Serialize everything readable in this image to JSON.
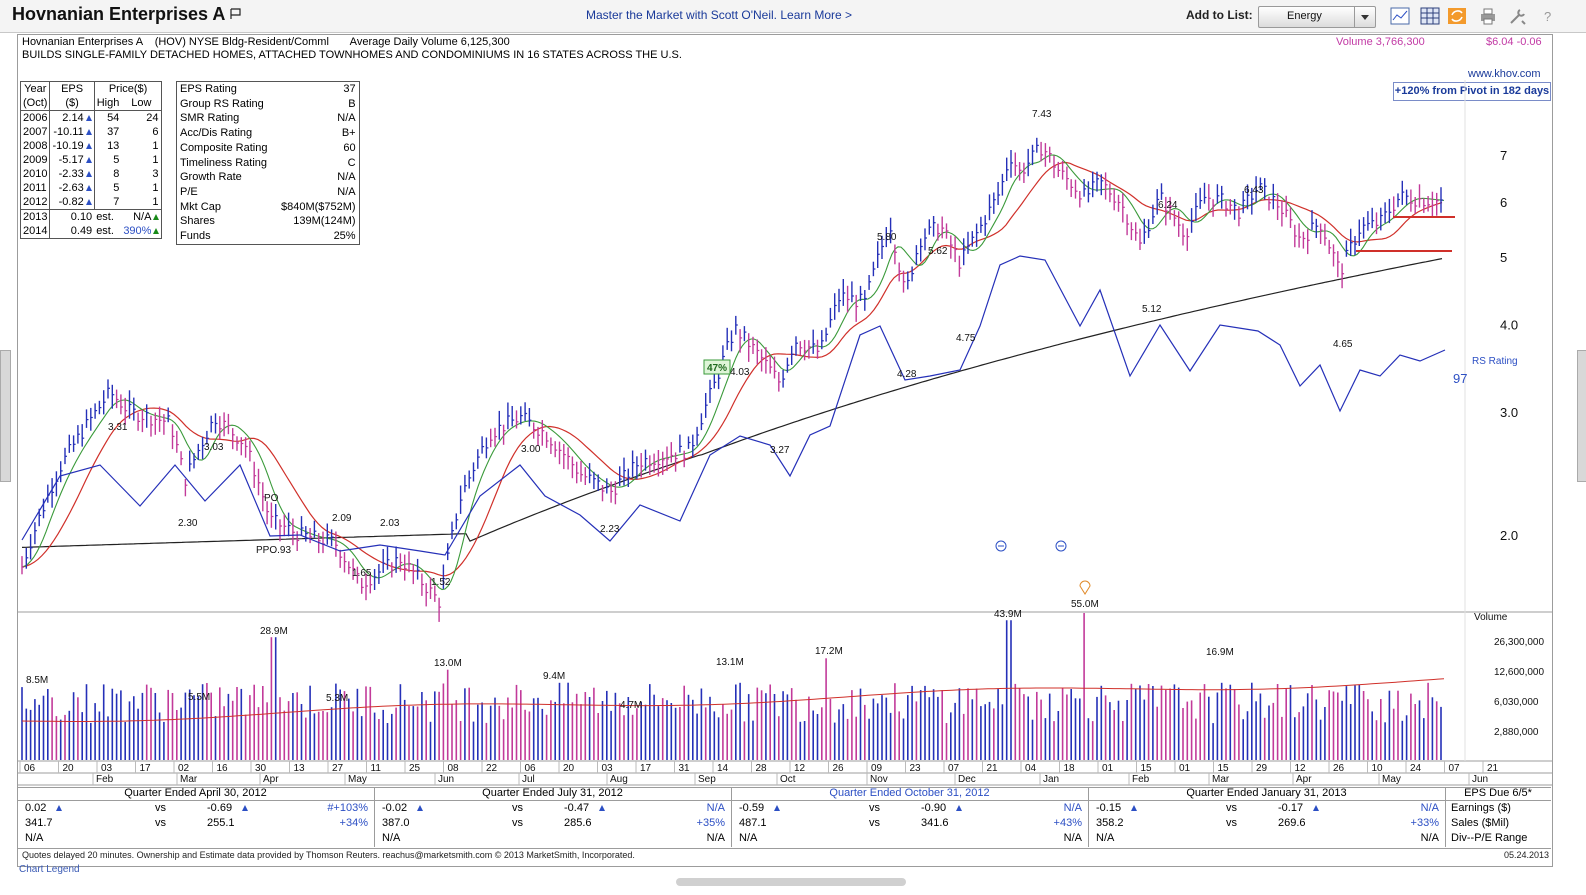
{
  "header": {
    "title": "Hovnanian Enterprises A",
    "promo": "Master the Market with Scott O'Neil. Learn More >",
    "add_to_list_label": "Add to List:",
    "list_value": "Energy",
    "icons": [
      "line-chart-icon",
      "grid-icon",
      "refresh-icon",
      "print-icon",
      "tools-icon",
      "help-icon"
    ]
  },
  "summary": {
    "line1": "Hovnanian Enterprises A    (HOV) NYSE Bldg-Resident/Comml       Average Daily Volume 6,125,300",
    "line2": "BUILDS SINGLE-FAMILY DETACHED HOMES, ATTACHED TOWNHOMES AND CONDOMINIUMS IN 16 STATES ACROSS THE U.S.",
    "volume": "Volume 3,766,300",
    "price": "$6.04 -0.06",
    "website": "www.khov.com",
    "pivot": "+120% from Pivot in 182 days"
  },
  "eps_table": {
    "headers": {
      "year": "Year",
      "year_sub": "(Oct)",
      "eps": "EPS",
      "eps_sub": "($)",
      "price": "Price($)",
      "high": "High",
      "low": "Low"
    },
    "rows": [
      {
        "year": "2006",
        "eps": "2.14",
        "high": "54",
        "low": "24"
      },
      {
        "year": "2007",
        "eps": "-10.11",
        "high": "37",
        "low": "6"
      },
      {
        "year": "2008",
        "eps": "-10.19",
        "high": "13",
        "low": "1"
      },
      {
        "year": "2009",
        "eps": "-5.17",
        "high": "5",
        "low": "1"
      },
      {
        "year": "2010",
        "eps": "-2.33",
        "high": "8",
        "low": "3"
      },
      {
        "year": "2011",
        "eps": "-2.63",
        "high": "5",
        "low": "1"
      },
      {
        "year": "2012",
        "eps": "-0.82",
        "high": "7",
        "low": "1"
      }
    ],
    "est_rows": [
      {
        "year": "2013",
        "eps": "0.10",
        "est": "est.",
        "pct": "N/A"
      },
      {
        "year": "2014",
        "eps": "0.49",
        "est": "est.",
        "pct": "390%"
      }
    ]
  },
  "ratings": [
    {
      "label": "EPS Rating",
      "value": "37"
    },
    {
      "label": "Group RS Rating",
      "value": "B"
    },
    {
      "label": "SMR Rating",
      "value": "N/A"
    },
    {
      "label": "Acc/Dis Rating",
      "value": "B+"
    },
    {
      "label": "Composite Rating",
      "value": "60"
    },
    {
      "label": "Timeliness Rating",
      "value": "C"
    },
    {
      "label": "Growth Rate",
      "value": "N/A"
    },
    {
      "label": "P/E",
      "value": "N/A"
    },
    {
      "label": "Mkt Cap",
      "value": "$840M($752M)"
    },
    {
      "label": "Shares",
      "value": "139M(124M)"
    },
    {
      "label": "Funds",
      "value": "25%"
    }
  ],
  "chart_data": {
    "type": "line",
    "price_axis_ticks": [
      "7",
      "6",
      "5",
      "4.0",
      "3.0",
      "2.0"
    ],
    "price_axis_values": [
      7,
      6,
      5,
      4,
      3,
      2
    ],
    "volume_axis_label": "Volume",
    "volume_axis_ticks": [
      "26,300,000",
      "12,600,000",
      "6,030,000",
      "2,880,000"
    ],
    "volume_axis_values": [
      26300000,
      12600000,
      6030000,
      2880000
    ],
    "rs_label": "RS Rating",
    "rs_value": "97",
    "rs_badge": "47%",
    "price_annotations": [
      {
        "text": "3.31",
        "price": 3.31
      },
      {
        "text": "2.30",
        "price": 2.3
      },
      {
        "text": "3.03",
        "price": 3.03
      },
      {
        "text": "PO",
        "price": 2.55
      },
      {
        "text": "PPO.93",
        "price": 1.93
      },
      {
        "text": "2.09",
        "price": 2.09
      },
      {
        "text": "1.65",
        "price": 1.65
      },
      {
        "text": "2.03",
        "price": 2.03
      },
      {
        "text": "1.52",
        "price": 1.52
      },
      {
        "text": "3.00",
        "price": 3.0
      },
      {
        "text": "2.23",
        "price": 2.23
      },
      {
        "text": "4.03",
        "price": 4.03
      },
      {
        "text": "3.27",
        "price": 3.27
      },
      {
        "text": "5.80",
        "price": 5.8
      },
      {
        "text": "4.28",
        "price": 4.28
      },
      {
        "text": "5.62",
        "price": 5.62
      },
      {
        "text": "4.75",
        "price": 4.75
      },
      {
        "text": "7.43",
        "price": 7.43
      },
      {
        "text": "6.24",
        "price": 6.24
      },
      {
        "text": "5.12",
        "price": 5.12
      },
      {
        "text": "6.43",
        "price": 6.43
      },
      {
        "text": "4.65",
        "price": 4.65
      }
    ],
    "volume_annotations": [
      "8.5M",
      "5.5M",
      "28.9M",
      "5.3M",
      "13.0M",
      "9.4M",
      "4.7M",
      "13.1M",
      "17.2M",
      "43.9M",
      "55.0M",
      "16.9M"
    ],
    "x_day_labels": [
      "06",
      "20",
      "03",
      "17",
      "02",
      "16",
      "30",
      "13",
      "27",
      "11",
      "25",
      "08",
      "22",
      "06",
      "20",
      "03",
      "17",
      "31",
      "14",
      "28",
      "12",
      "26",
      "09",
      "23",
      "07",
      "21",
      "04",
      "18",
      "01",
      "15",
      "01",
      "15",
      "29",
      "12",
      "26",
      "10",
      "24",
      "07",
      "21"
    ],
    "x_month_labels": [
      "Feb",
      "Mar",
      "Apr",
      "May",
      "Jun",
      "Jul",
      "Aug",
      "Sep",
      "Oct",
      "Nov",
      "Dec",
      "Jan",
      "Feb",
      "Mar",
      "Apr",
      "May",
      "Jun"
    ]
  },
  "quarters": [
    {
      "head": "Quarter Ended April 30, 2012",
      "eps_cur": "0.02",
      "eps_prev": "-0.69",
      "eps_chg": "#+103%",
      "sales_cur": "341.7",
      "sales_prev": "255.1",
      "sales_chg": "+34%",
      "na1": "N/A"
    },
    {
      "head": "Quarter Ended July 31, 2012",
      "eps_cur": "-0.02",
      "eps_prev": "-0.47",
      "eps_chg": "N/A",
      "sales_cur": "387.0",
      "sales_prev": "285.6",
      "sales_chg": "+35%",
      "na1": "N/A",
      "na2": "N/A"
    },
    {
      "head": "Quarter Ended October 31, 2012",
      "eps_cur": "-0.59",
      "eps_prev": "-0.90",
      "eps_chg": "N/A",
      "sales_cur": "487.1",
      "sales_prev": "341.6",
      "sales_chg": "+43%",
      "na1": "N/A",
      "na2": "N/A"
    },
    {
      "head": "Quarter Ended January 31, 2013",
      "eps_cur": "-0.15",
      "eps_prev": "-0.17",
      "eps_chg": "N/A",
      "sales_cur": "358.2",
      "sales_prev": "269.6",
      "sales_chg": "+33%",
      "na1": "N/A",
      "na2": "N/A"
    }
  ],
  "quarter_vs": "vs",
  "quarter_side": {
    "head": "EPS Due 6/5*",
    "r1": "Earnings ($)",
    "r2": "Sales ($Mil)",
    "r3": "Div--P/E Range"
  },
  "footer": {
    "note": "Quotes delayed 20 minutes.  Ownership and Estimate data provided by Thomson Reuters. reachus@marketsmith.com     © 2013 MarketSmith, Incorporated.",
    "legend": "Chart Legend",
    "date": "05.24.2013"
  }
}
